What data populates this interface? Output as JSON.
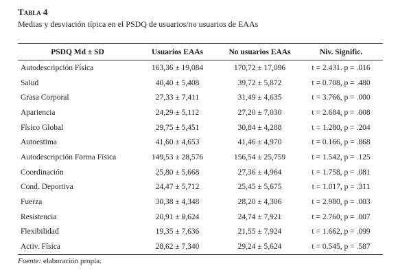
{
  "header": {
    "title": "Tabla 4",
    "subtitle": "Medias y desviación típica en el PSDQ de usuarios/no usuarios de EAAs"
  },
  "table": {
    "columns": [
      "PSDQ Md ± SD",
      "Usuarios EAAs",
      "No usuarios EAAs",
      "Niv. Signific."
    ],
    "rows": [
      [
        "Autodescripción Física",
        "163,36 ± 19,084",
        "170,72 ± 17,096",
        "t = 2.431. p = .016"
      ],
      [
        "Salud",
        "40,40 ± 5,408",
        "39,72 ± 5,872",
        "t = 0.708, p = .480"
      ],
      [
        "Grasa Corporal",
        "27,33 ± 7,411",
        "31,49 ± 4,635",
        "t = 3.766, p = .000"
      ],
      [
        "Apariencia",
        "24,29 ± 5,112",
        "27,20 ± 7,030",
        "t = 2.684, p = .008"
      ],
      [
        "Físico Global",
        "29,75 ± 5,451",
        "30,84 ± 4,288",
        "t = 1.280, p = .204"
      ],
      [
        "Autoestima",
        "41,60 ± 4,653",
        "41,46 ± 4,970",
        "t = 0.166, p = .868"
      ],
      [
        "Autodescripción Forma Física",
        "149,53 ± 28,576",
        "156,54 ± 25,759",
        "t = 1.542, p = .125"
      ],
      [
        "Coordinación",
        "25,80 ± 5,668",
        "27,36 ± 4,964",
        "t = 1.758, p = .081"
      ],
      [
        "Cond. Deportiva",
        "24,47 ± 5,712",
        "25,45 ± 5,675",
        "t = 1.017, p = .311"
      ],
      [
        "Fuerza",
        "30,38 ± 4,348",
        "28,20 ± 4,306",
        "t = 2.980, p = .003"
      ],
      [
        "Resistencia",
        "20,91 ± 8,624",
        "24,74 ± 7,921",
        "t = 2.760, p = .007"
      ],
      [
        "Flexibilidad",
        "19,35 ± 7,636",
        "21,55 ± 7,924",
        "t = 1.662, p = .099"
      ],
      [
        "Activ. Física",
        "28,62 ± 7,340",
        "29,24 ± 5,624",
        "t = 0.545, p = .587"
      ]
    ]
  },
  "note": {
    "label": "Fuente:",
    "text": "elaboración propia."
  }
}
